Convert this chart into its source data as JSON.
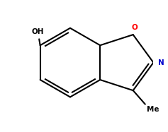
{
  "bg_color": "#ffffff",
  "bond_color": "#000000",
  "o_color": "#ff0000",
  "n_color": "#0000cc",
  "text_color": "#000000",
  "line_width": 1.5,
  "oh_label": "OH",
  "o_label": "O",
  "n_label": "N",
  "me_label": "Me",
  "figsize": [
    2.37,
    1.87
  ],
  "dpi": 100
}
